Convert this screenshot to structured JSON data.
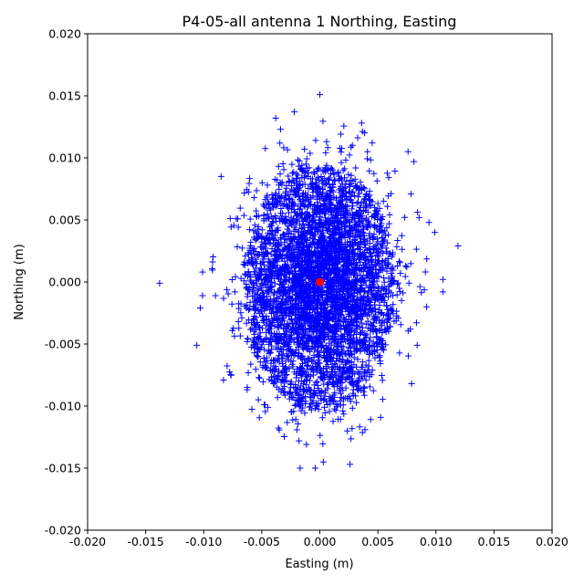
{
  "chart_data": {
    "type": "scatter",
    "title": "P4-05-all antenna 1 Northing, Easting",
    "xlabel": "Easting (m)",
    "ylabel": "Northing (m)",
    "xlim": [
      -0.02,
      0.02
    ],
    "ylim": [
      -0.02,
      0.02
    ],
    "x_ticks": [
      "-0.020",
      "-0.015",
      "-0.010",
      "-0.005",
      "0.000",
      "0.005",
      "0.010",
      "0.015",
      "0.020"
    ],
    "y_ticks": [
      "0.020",
      "0.015",
      "0.010",
      "0.005",
      "0.000",
      "-0.005",
      "-0.010",
      "-0.015",
      "-0.020"
    ],
    "x_tick_values": [
      -0.02,
      -0.015,
      -0.01,
      -0.005,
      0.0,
      0.005,
      0.01,
      0.015,
      0.02
    ],
    "y_tick_values": [
      0.02,
      0.015,
      0.01,
      0.005,
      0.0,
      -0.005,
      -0.01,
      -0.015,
      -0.02
    ],
    "grid": false,
    "series": [
      {
        "marker": "plus",
        "color": "#0000ff",
        "distribution": {
          "center": [
            0.0,
            0.0
          ],
          "sd_easting": 0.003,
          "sd_northing": 0.0045,
          "dense_core_easting": [
            -0.0065,
            0.0065
          ],
          "dense_core_northing": [
            -0.0105,
            0.0095
          ]
        },
        "outliers": [
          {
            "x": 0.0,
            "y": 0.0151
          },
          {
            "x": -0.0138,
            "y": -0.0001
          },
          {
            "x": 0.0119,
            "y": 0.0029
          },
          {
            "x": 0.0106,
            "y": 0.0002
          },
          {
            "x": 0.0106,
            "y": -0.0008
          },
          {
            "x": -0.0106,
            "y": -0.0051
          },
          {
            "x": -0.0103,
            "y": -0.0021
          },
          {
            "x": -0.0101,
            "y": -0.0011
          },
          {
            "x": -0.0101,
            "y": 0.0008
          },
          {
            "x": 0.0099,
            "y": 0.004
          },
          {
            "x": 0.0094,
            "y": 0.0048
          },
          {
            "x": 0.0092,
            "y": -0.002
          },
          {
            "x": -0.0022,
            "y": 0.0137
          },
          {
            "x": 0.0036,
            "y": 0.0128
          },
          {
            "x": -0.0038,
            "y": 0.0132
          },
          {
            "x": -0.0017,
            "y": -0.015
          },
          {
            "x": -0.0004,
            "y": -0.015
          },
          {
            "x": 0.0026,
            "y": -0.0147
          },
          {
            "x": 0.0003,
            "y": -0.0145
          },
          {
            "x": -0.0018,
            "y": -0.0128
          },
          {
            "x": -0.0085,
            "y": 0.0085
          },
          {
            "x": -0.0083,
            "y": -0.0079
          },
          {
            "x": 0.0079,
            "y": -0.0082
          },
          {
            "x": 0.0076,
            "y": 0.0105
          },
          {
            "x": 0.0081,
            "y": 0.0097
          }
        ]
      },
      {
        "marker": "circle",
        "color": "#ff0000",
        "points": [
          {
            "x": 0.0,
            "y": 0.0
          }
        ]
      }
    ]
  }
}
